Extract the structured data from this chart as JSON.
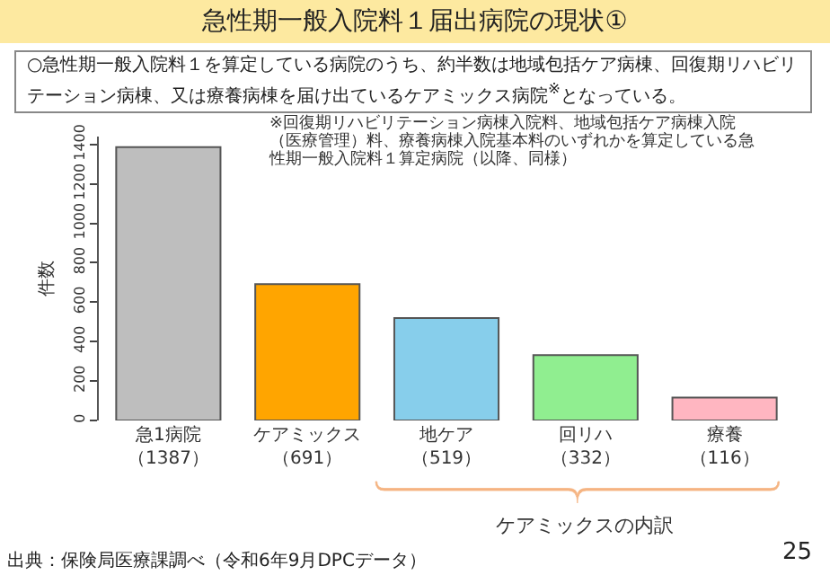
{
  "chart_data": {
    "type": "bar",
    "title": "急性期一般入院料１届出病院の現状①",
    "subtitle": "○急性期一般入院料１を算定している病院のうち、約半数は地域包括ケア病棟、回復期リハビリテーション病棟、又は療養病棟を届け出ているケアミックス病院$^{※}$となっている。",
    "categories": [
      "急1病院",
      "ケアミックス",
      "地ケア",
      "回リハ",
      "療養"
    ],
    "values": [
      1387,
      691,
      519,
      332,
      116
    ],
    "value_labels": [
      "（1387）",
      "（691）",
      "（519）",
      "（332）",
      "（116）"
    ],
    "colors": [
      "#bebebe",
      "#ffa500",
      "#87ceeb",
      "#90ee90",
      "#ffb6c1"
    ],
    "ylabel": "件数",
    "ylim": [
      0,
      1440
    ],
    "yticks": [
      0,
      200,
      400,
      600,
      800,
      1000,
      1200,
      1400
    ],
    "annotations": [
      "※回復期リハビリテーション病棟入院料、地域包括ケア病棟入院（医療管理）料、療養病棟入院基本料のいずれかを算定している急性期一般入院料１算定病院（以降、同様）",
      "ケアミックスの内訳",
      "出典：保険局医療課調べ（令和6年9月DPCデータ）",
      "25"
    ]
  }
}
